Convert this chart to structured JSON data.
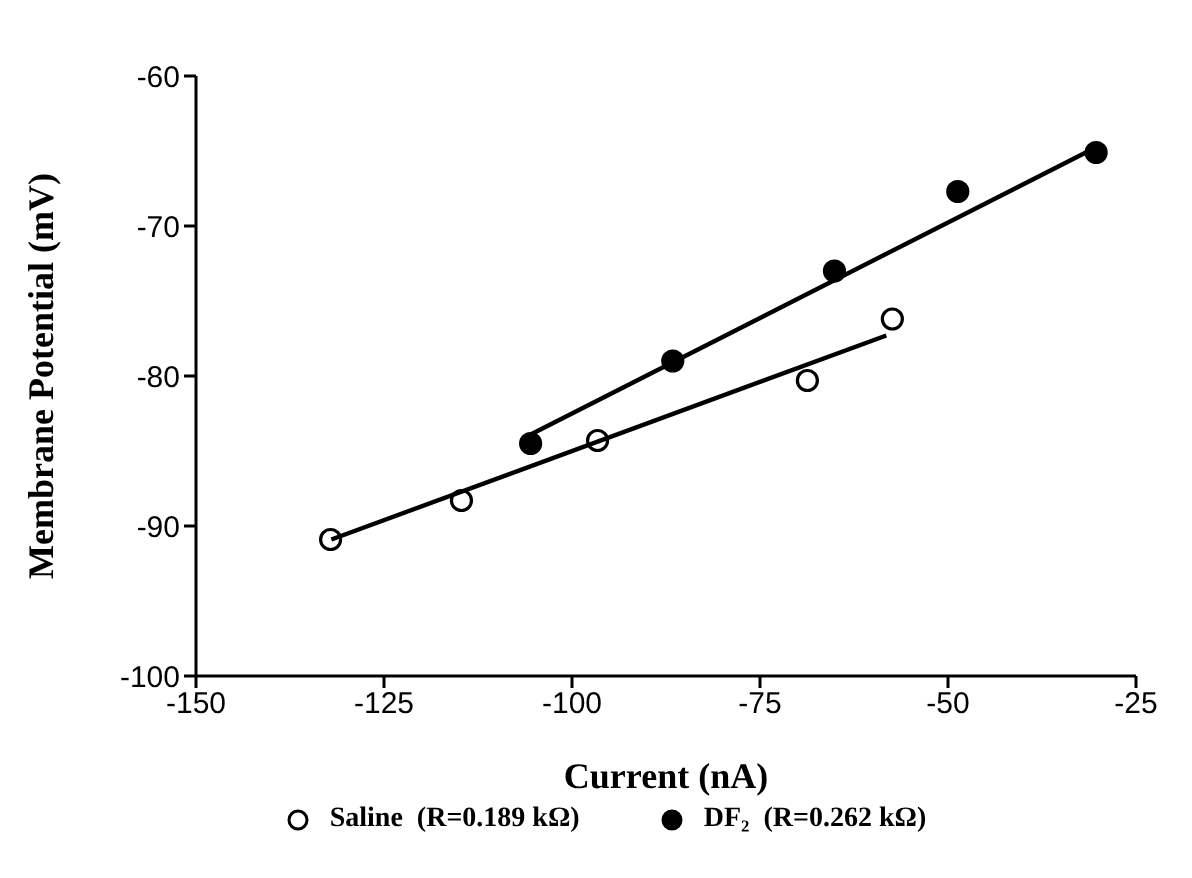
{
  "chart_data": {
    "type": "scatter",
    "xlabel": "Current (nA)",
    "ylabel": "Membrane Potential (mV)",
    "xlim": [
      -150,
      -25
    ],
    "xticks": [
      -150,
      -125,
      -100,
      -75,
      -50,
      -25
    ],
    "ylim": [
      -100,
      -60
    ],
    "yticks": [
      -100,
      -90,
      -80,
      -70,
      -60
    ],
    "grid": false,
    "legend": "bottom",
    "marker": "circle",
    "series": [
      {
        "name": "Saline  (R=0.189 kΩ)",
        "color": "#ffffff",
        "x": [
          -132.1,
          -114.7,
          -96.6,
          -68.7,
          -57.4
        ],
        "values": [
          -90.9,
          -88.3,
          -84.3,
          -80.3,
          -76.2
        ]
      },
      {
        "name": "DF₂  (R=0.262 kΩ)",
        "color": "#000000",
        "x": [
          -105.5,
          -86.6,
          -65.1,
          -48.7,
          -30.3
        ],
        "values": [
          -84.5,
          -79.0,
          -73.0,
          -67.7,
          -65.1
        ]
      },
      {
        "type": "line",
        "color": "#000000",
        "marker": "none",
        "x": [
          -132,
          -58.2
        ],
        "values": [
          -90.9,
          -77.3
        ]
      },
      {
        "type": "line",
        "color": "#000000",
        "marker": "none",
        "x": [
          -105.5,
          -30.1
        ],
        "values": [
          -83.9,
          -64.7
        ]
      }
    ]
  }
}
